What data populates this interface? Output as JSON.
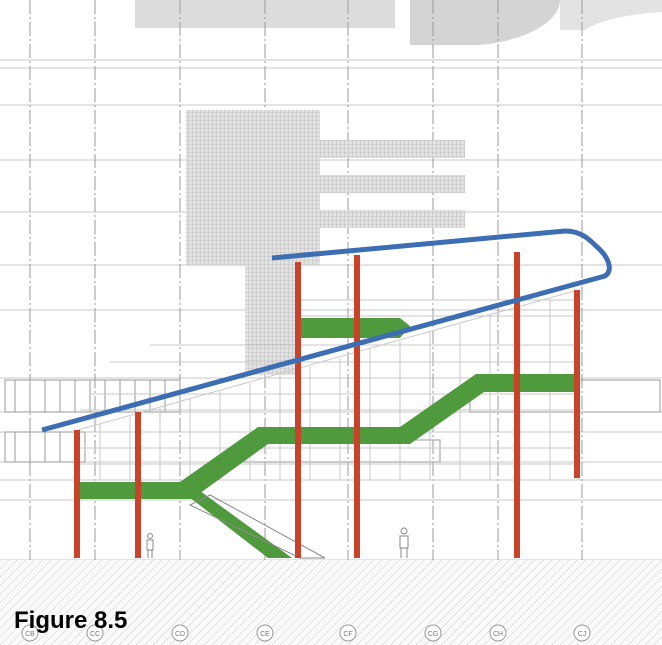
{
  "caption": "Figure 8.5",
  "grid_labels": [
    "CB",
    "CC",
    "CD",
    "CE",
    "CF",
    "CG",
    "CH",
    "CJ"
  ]
}
